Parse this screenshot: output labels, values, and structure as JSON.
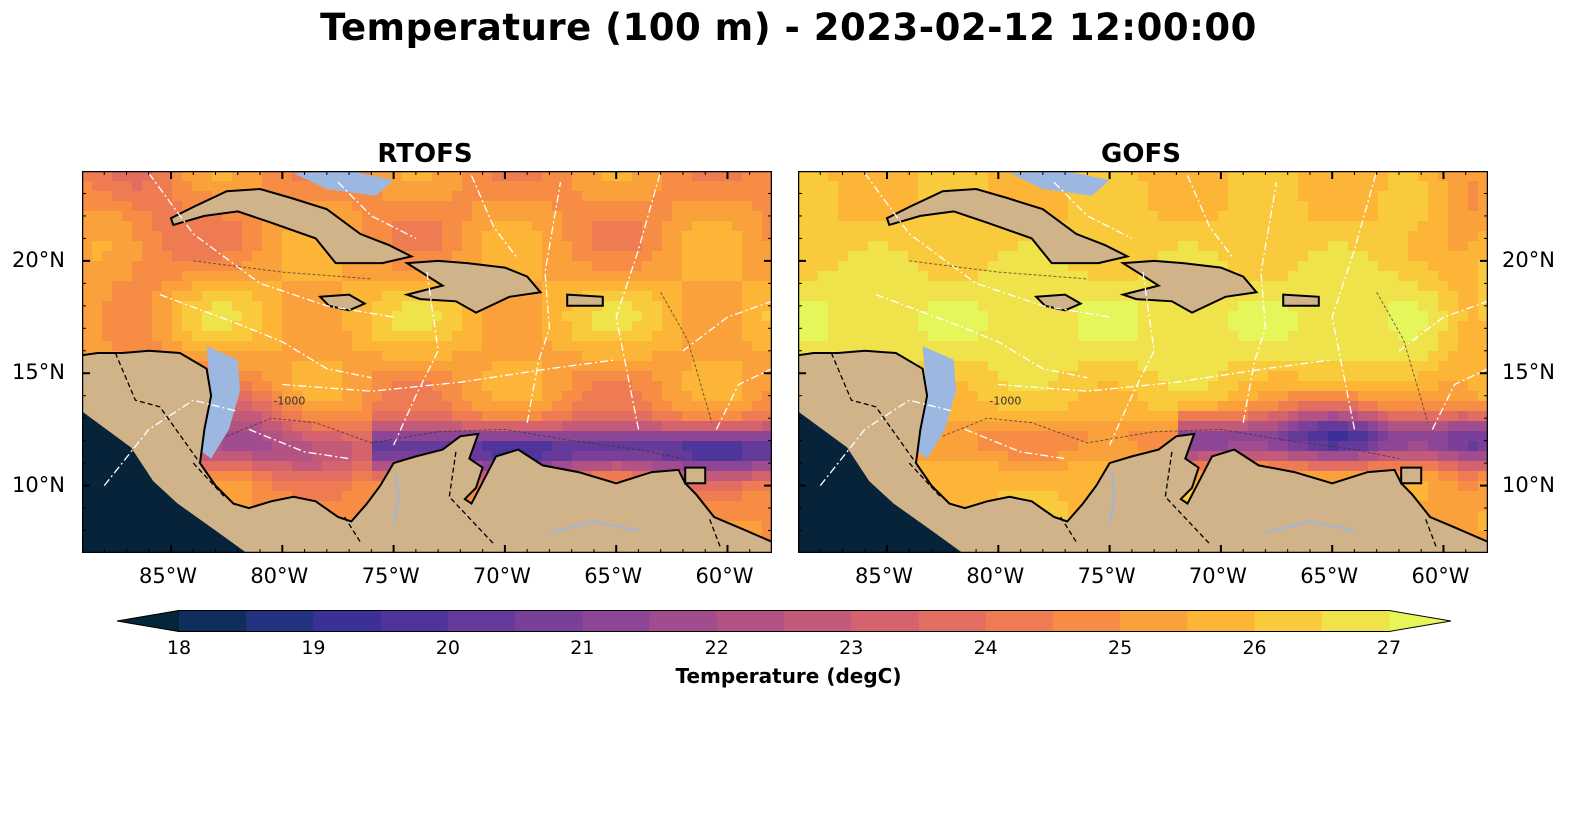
{
  "title": "Temperature (100 m) - 2023-02-12 12:00:00",
  "panels": [
    {
      "title": "RTOFS",
      "x_ticks": [
        "85°W",
        "80°W",
        "75°W",
        "70°W",
        "65°W",
        "60°W"
      ],
      "y_ticks": [
        "20°N",
        "15°N",
        "10°N"
      ],
      "y_tick_side": "left"
    },
    {
      "title": "GOFS",
      "x_ticks": [
        "85°W",
        "80°W",
        "75°W",
        "70°W",
        "65°W",
        "60°W"
      ],
      "y_ticks": [
        "20°N",
        "15°N",
        "10°N"
      ],
      "y_tick_side": "right"
    }
  ],
  "map_extent": {
    "lon": [
      -89,
      -58
    ],
    "lat": [
      7,
      24
    ]
  },
  "contour_labels": [
    "-1000"
  ],
  "colorbar": {
    "label": "Temperature (degC)",
    "ticks": [
      "18",
      "19",
      "20",
      "21",
      "22",
      "23",
      "24",
      "25",
      "26",
      "27"
    ],
    "range": [
      18,
      27
    ],
    "extend": "both",
    "colormap": [
      "#03263a",
      "#0f2e5c",
      "#23337f",
      "#3b3097",
      "#4f349c",
      "#643a9b",
      "#793f99",
      "#8d4595",
      "#a04c8e",
      "#b35384",
      "#c45a7a",
      "#d4636d",
      "#e26d61",
      "#ef7b53",
      "#f78d45",
      "#fba13b",
      "#fcb536",
      "#f8ca3c",
      "#efe24a",
      "#e6f65a"
    ]
  },
  "colors": {
    "land": "#d1b38a",
    "shallow_water": "#9cb8e0",
    "background": "#ffffff"
  }
}
